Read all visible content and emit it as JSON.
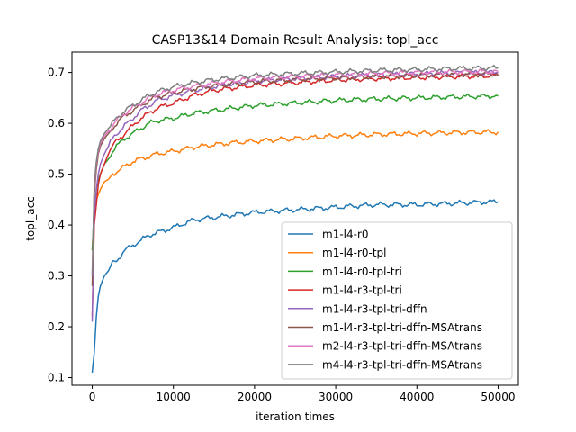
{
  "chart_data": {
    "type": "line",
    "title": "CASP13&14 Domain Result Analysis: topl_acc",
    "xlabel": "iteration times",
    "ylabel": "topl_acc",
    "xlim": [
      -2500,
      52500
    ],
    "ylim": [
      0.085,
      0.74
    ],
    "xticks": [
      0,
      10000,
      20000,
      30000,
      40000,
      50000
    ],
    "xtick_labels": [
      "0",
      "10000",
      "20000",
      "30000",
      "40000",
      "50000"
    ],
    "yticks": [
      0.1,
      0.2,
      0.3,
      0.4,
      0.5,
      0.6,
      0.7
    ],
    "ytick_labels": [
      "0.1",
      "0.2",
      "0.3",
      "0.4",
      "0.5",
      "0.6",
      "0.7"
    ],
    "grid": false,
    "legend_position": "lower-right",
    "x": [
      0,
      250,
      500,
      750,
      1000,
      1500,
      2000,
      2500,
      3000,
      4000,
      5000,
      6000,
      7000,
      8000,
      10000,
      12500,
      15000,
      17500,
      20000,
      25000,
      30000,
      35000,
      40000,
      45000,
      50000
    ],
    "series": [
      {
        "name": "m1-l4-r0",
        "color": "#1f77b4",
        "values": [
          0.11,
          0.15,
          0.22,
          0.26,
          0.28,
          0.3,
          0.31,
          0.325,
          0.33,
          0.35,
          0.36,
          0.37,
          0.38,
          0.385,
          0.395,
          0.41,
          0.415,
          0.42,
          0.425,
          0.43,
          0.435,
          0.44,
          0.44,
          0.443,
          0.446
        ]
      },
      {
        "name": "m1-l4-r0-tpl",
        "color": "#ff7f0e",
        "values": [
          0.35,
          0.43,
          0.45,
          0.46,
          0.47,
          0.485,
          0.49,
          0.5,
          0.505,
          0.515,
          0.525,
          0.53,
          0.535,
          0.54,
          0.545,
          0.553,
          0.558,
          0.562,
          0.565,
          0.57,
          0.575,
          0.578,
          0.58,
          0.582,
          0.583
        ]
      },
      {
        "name": "m1-l4-r0-tpl-tri",
        "color": "#2ca02c",
        "values": [
          0.35,
          0.43,
          0.47,
          0.49,
          0.5,
          0.52,
          0.53,
          0.545,
          0.555,
          0.57,
          0.58,
          0.59,
          0.6,
          0.605,
          0.61,
          0.62,
          0.625,
          0.63,
          0.635,
          0.64,
          0.645,
          0.648,
          0.65,
          0.652,
          0.654
        ]
      },
      {
        "name": "m1-l4-r3-tpl-tri",
        "color": "#d62728",
        "values": [
          0.22,
          0.4,
          0.44,
          0.48,
          0.5,
          0.52,
          0.54,
          0.555,
          0.565,
          0.58,
          0.595,
          0.61,
          0.62,
          0.63,
          0.64,
          0.655,
          0.665,
          0.67,
          0.675,
          0.68,
          0.685,
          0.688,
          0.69,
          0.692,
          0.694
        ]
      },
      {
        "name": "m1-l4-r3-tpl-tri-dffn",
        "color": "#9467bd",
        "values": [
          0.21,
          0.42,
          0.47,
          0.5,
          0.52,
          0.54,
          0.555,
          0.57,
          0.58,
          0.595,
          0.61,
          0.625,
          0.635,
          0.645,
          0.655,
          0.665,
          0.672,
          0.678,
          0.683,
          0.688,
          0.692,
          0.695,
          0.697,
          0.699,
          0.7
        ]
      },
      {
        "name": "m1-l4-r3-tpl-tri-dffn-MSAtrans",
        "color": "#8c564b",
        "values": [
          0.28,
          0.46,
          0.51,
          0.54,
          0.555,
          0.57,
          0.58,
          0.59,
          0.6,
          0.615,
          0.625,
          0.635,
          0.645,
          0.652,
          0.66,
          0.668,
          0.674,
          0.678,
          0.682,
          0.686,
          0.689,
          0.692,
          0.694,
          0.696,
          0.697
        ]
      },
      {
        "name": "m2-l4-r3-tpl-tri-dffn-MSAtrans",
        "color": "#e377c2",
        "values": [
          0.3,
          0.47,
          0.52,
          0.545,
          0.56,
          0.575,
          0.585,
          0.595,
          0.605,
          0.62,
          0.63,
          0.64,
          0.65,
          0.657,
          0.665,
          0.673,
          0.679,
          0.684,
          0.688,
          0.692,
          0.695,
          0.698,
          0.7,
          0.701,
          0.702
        ]
      },
      {
        "name": "m4-l4-r3-tpl-tri-dffn-MSAtrans",
        "color": "#7f7f7f",
        "values": [
          0.3,
          0.48,
          0.525,
          0.55,
          0.565,
          0.58,
          0.59,
          0.6,
          0.61,
          0.625,
          0.635,
          0.645,
          0.655,
          0.662,
          0.672,
          0.68,
          0.686,
          0.69,
          0.694,
          0.698,
          0.701,
          0.704,
          0.706,
          0.708,
          0.709
        ]
      }
    ]
  }
}
